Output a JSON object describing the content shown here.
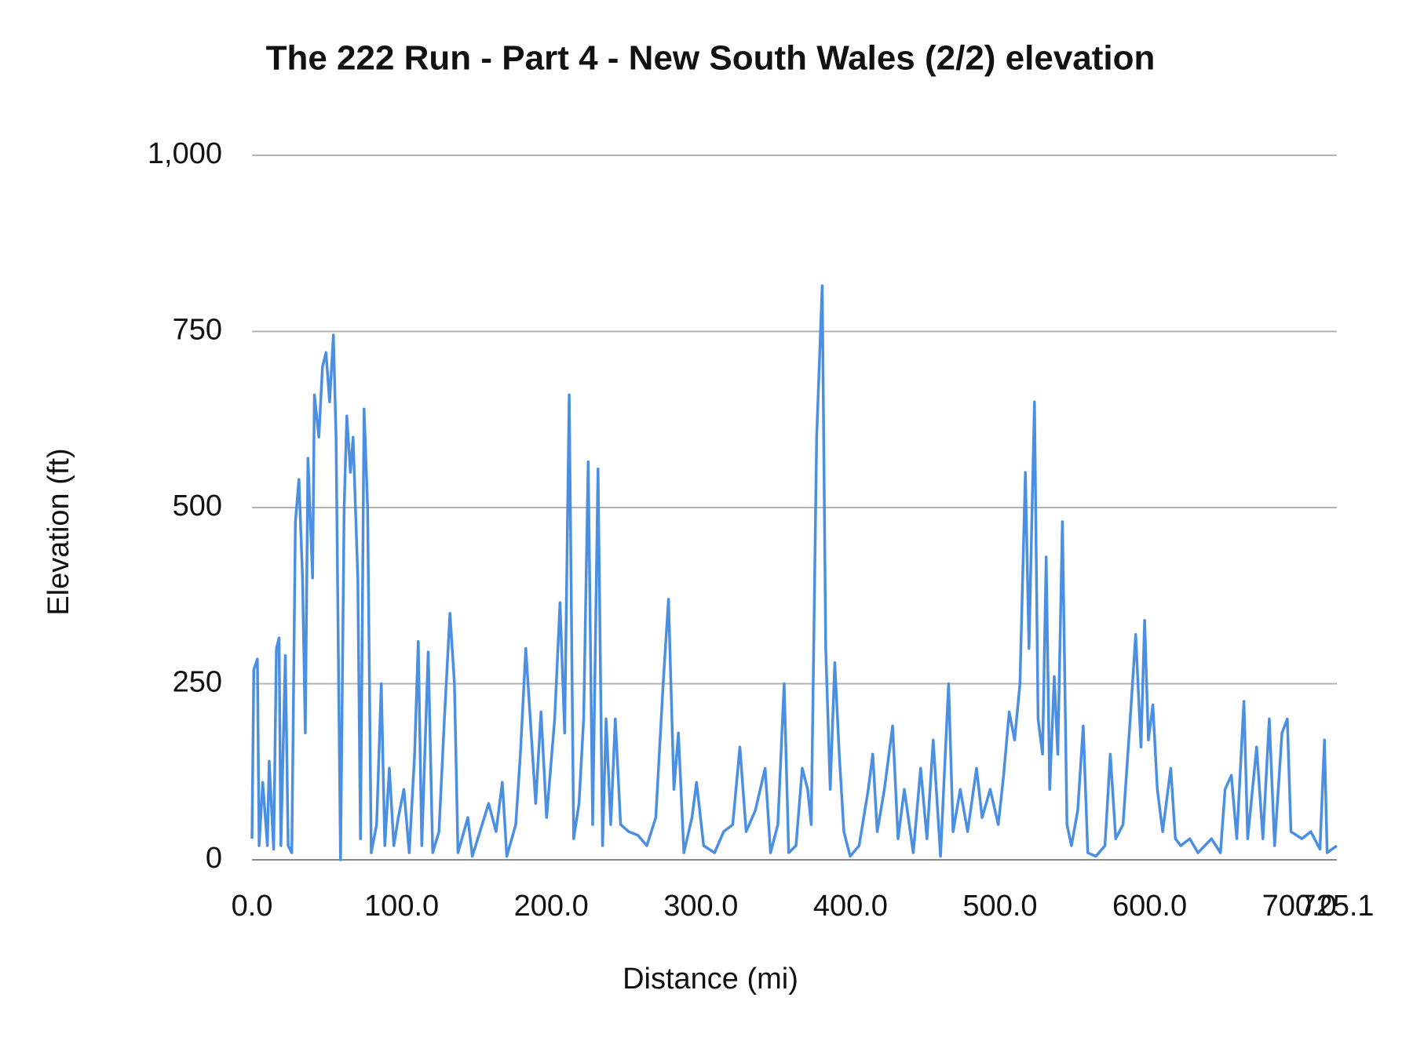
{
  "chart_data": {
    "type": "line",
    "title": "The 222 Run - Part 4 - New South Wales (2/2) elevation",
    "x_label": "Distance (mi)",
    "y_label": "Elevation (ft)",
    "color": "#4a8fe2",
    "grid": true,
    "xlim": [
      0,
      725.1
    ],
    "xticks": [
      {
        "value": 0,
        "label": "0.0"
      },
      {
        "value": 100,
        "label": "100.0"
      },
      {
        "value": 200,
        "label": "200.0"
      },
      {
        "value": 300,
        "label": "300.0"
      },
      {
        "value": 400,
        "label": "400.0"
      },
      {
        "value": 500,
        "label": "500.0"
      },
      {
        "value": 600,
        "label": "600.0"
      },
      {
        "value": 700,
        "label": "700.0"
      },
      {
        "value": 725.1,
        "label": "725.1"
      }
    ],
    "ylim": [
      0,
      1000
    ],
    "yticks": [
      0,
      250,
      500,
      750,
      {
        "value": 1000,
        "label": "1,000"
      }
    ],
    "x": [
      0,
      1.2,
      3.6,
      4.8,
      7.2,
      10.3,
      11.5,
      14.5,
      16.3,
      18.1,
      19.3,
      22.3,
      24.2,
      26.6,
      29.0,
      31.4,
      33.8,
      35.6,
      37.4,
      40.5,
      41.7,
      44.7,
      47.1,
      49.5,
      51.9,
      54.4,
      56.2,
      59.2,
      61.6,
      63.4,
      65.8,
      67.6,
      70.7,
      72.5,
      74.9,
      77.3,
      79.7,
      83.3,
      86.4,
      88.8,
      91.8,
      94.8,
      97.8,
      101.5,
      105.1,
      108.7,
      111.1,
      113.5,
      117.8,
      120.8,
      125.0,
      128.6,
      132.3,
      135.3,
      137.7,
      144.3,
      147.3,
      158.2,
      163.1,
      167.3,
      170.3,
      176.3,
      179.4,
      183.0,
      186.0,
      189.6,
      193.2,
      196.9,
      202.3,
      205.9,
      209.0,
      212.0,
      215.0,
      218.6,
      221.7,
      224.7,
      227.7,
      231.3,
      234.3,
      236.7,
      239.8,
      242.8,
      246.4,
      251.8,
      257.9,
      263.9,
      269.9,
      274.8,
      278.4,
      282.0,
      285.0,
      288.7,
      294.1,
      297.1,
      301.9,
      309.2,
      315.2,
      321.3,
      326.1,
      330.3,
      336.4,
      343.0,
      346.6,
      351.5,
      355.7,
      358.7,
      363.6,
      367.8,
      371.4,
      373.8,
      377.4,
      381.1,
      383.5,
      386.5,
      389.5,
      392.5,
      395.6,
      399.8,
      405.8,
      411.9,
      414.9,
      417.9,
      422.7,
      428.2,
      431.8,
      436.0,
      442.0,
      446.9,
      451.1,
      455.3,
      460.2,
      465.6,
      468.6,
      473.4,
      478.3,
      484.3,
      488.0,
      493.4,
      498.8,
      502.4,
      506.1,
      509.7,
      513.3,
      516.9,
      519.3,
      523.0,
      525.4,
      528.4,
      530.8,
      533.2,
      536.2,
      538.6,
      541.7,
      544.7,
      547.7,
      551.9,
      555.6,
      558.6,
      564.0,
      570.1,
      573.7,
      577.3,
      582.2,
      587.0,
      590.6,
      594.2,
      596.6,
      599.1,
      602.1,
      605.1,
      608.7,
      614.1,
      617.2,
      620.8,
      626.8,
      632.3,
      641.3,
      647.3,
      650.4,
      654.6,
      658.2,
      663.0,
      665.5,
      671.5,
      675.7,
      679.9,
      683.5,
      688.4,
      692.0,
      694.4,
      701.7,
      707.7,
      713.8,
      716.8,
      718.6,
      725.1
    ],
    "values": [
      30,
      270,
      285,
      20,
      110,
      20,
      140,
      15,
      300,
      315,
      20,
      290,
      20,
      10,
      480,
      540,
      400,
      180,
      570,
      400,
      660,
      600,
      700,
      720,
      650,
      745,
      600,
      0,
      500,
      630,
      550,
      600,
      400,
      30,
      640,
      500,
      10,
      50,
      250,
      20,
      130,
      20,
      60,
      100,
      10,
      150,
      310,
      20,
      295,
      10,
      40,
      200,
      350,
      250,
      10,
      60,
      5,
      80,
      40,
      110,
      5,
      50,
      150,
      300,
      200,
      80,
      210,
      60,
      200,
      365,
      180,
      660,
      30,
      80,
      200,
      565,
      50,
      555,
      20,
      200,
      50,
      200,
      50,
      40,
      35,
      20,
      60,
      250,
      370,
      100,
      180,
      10,
      60,
      110,
      20,
      10,
      40,
      50,
      160,
      40,
      70,
      130,
      10,
      50,
      250,
      10,
      20,
      130,
      100,
      50,
      600,
      815,
      300,
      100,
      280,
      150,
      40,
      5,
      20,
      100,
      150,
      40,
      100,
      190,
      30,
      100,
      10,
      130,
      30,
      170,
      5,
      250,
      40,
      100,
      40,
      130,
      60,
      100,
      50,
      120,
      210,
      170,
      250,
      550,
      300,
      650,
      200,
      150,
      430,
      100,
      260,
      150,
      480,
      50,
      20,
      70,
      190,
      10,
      5,
      20,
      150,
      30,
      50,
      200,
      320,
      160,
      340,
      170,
      220,
      100,
      40,
      130,
      30,
      20,
      30,
      10,
      30,
      10,
      100,
      120,
      30,
      225,
      30,
      160,
      30,
      200,
      20,
      180,
      200,
      40,
      30,
      40,
      15,
      170,
      10,
      20
    ]
  }
}
